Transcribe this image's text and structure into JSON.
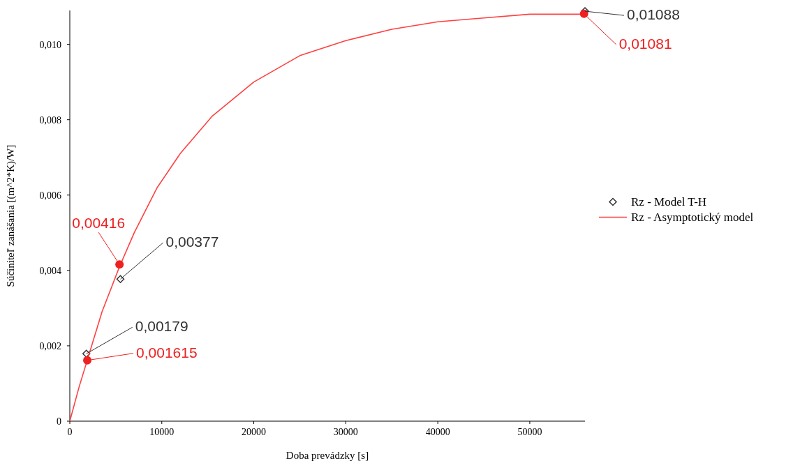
{
  "chart_data": {
    "type": "line",
    "xlabel": "Doba prevádzky [s]",
    "ylabel": "Súčiniteľ zanášania [(m^2*K)/W]",
    "xlim": [
      0,
      56000
    ],
    "ylim": [
      0,
      0.0109
    ],
    "xticks": [
      0,
      10000,
      20000,
      30000,
      40000,
      50000
    ],
    "yticks": [
      0,
      {
        "value": 0.002,
        "label": "0,002"
      },
      {
        "value": 0.004,
        "label": "0,004"
      },
      {
        "value": 0.006,
        "label": "0,006"
      },
      {
        "value": 0.008,
        "label": "0,008"
      },
      {
        "value": 0.01,
        "label": "0,010"
      }
    ],
    "grid": false,
    "legend": "right",
    "series": [
      {
        "name": "Rz - Model T-H",
        "type": "scatter",
        "marker": "diamond",
        "color": "#333333",
        "x": [
          1800,
          5500,
          56000
        ],
        "values": [
          0.00179,
          0.00377,
          0.01088
        ],
        "value_labels": [
          "0,00179",
          "0,00377",
          "0,01088"
        ]
      },
      {
        "name": "Rz - Asymptotický model",
        "marker": "none",
        "color": "#ff4040",
        "x": [
          0,
          1000,
          2000,
          3500,
          5400,
          7000,
          9500,
          12000,
          15500,
          20000,
          25000,
          30000,
          35000,
          40000,
          45000,
          50000,
          55800
        ],
        "values": [
          0,
          0.0009,
          0.0017,
          0.0029,
          0.0041,
          0.005,
          0.0062,
          0.0071,
          0.0081,
          0.009,
          0.0097,
          0.0101,
          0.0104,
          0.0106,
          0.0107,
          0.0108,
          0.0108
        ]
      },
      {
        "type": "scatter",
        "marker": "circle",
        "color": "#ee2020",
        "x": [
          1900,
          5400,
          55900
        ],
        "values": [
          0.001615,
          0.00416,
          0.01081
        ],
        "value_labels": [
          "0,001615",
          "0,00416",
          "0,01081"
        ]
      }
    ]
  }
}
